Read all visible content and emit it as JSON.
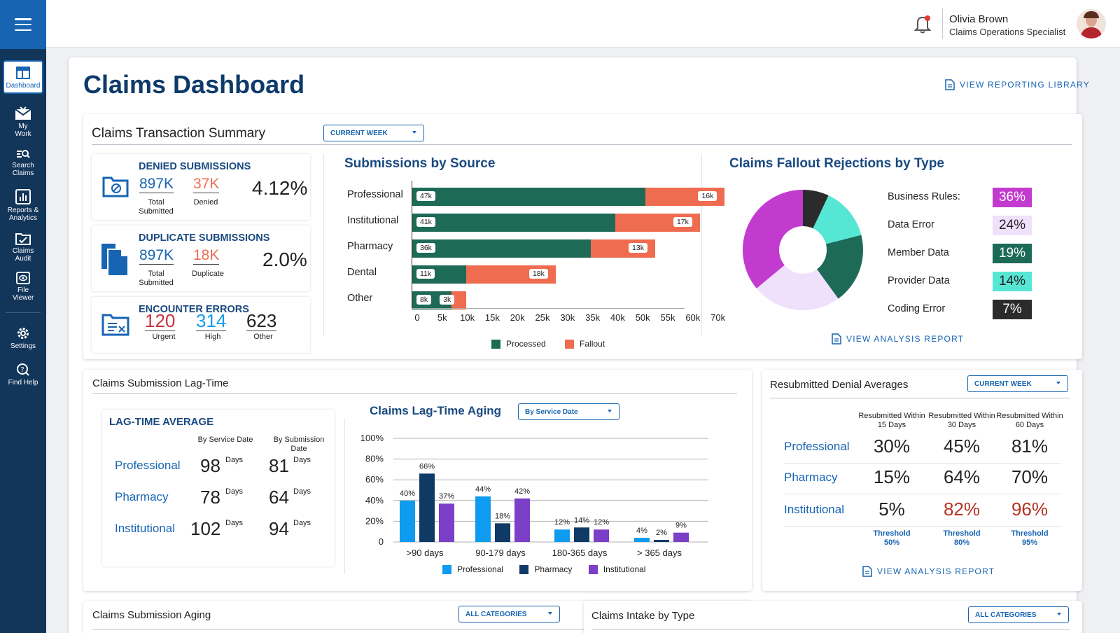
{
  "sidebar": {
    "items": [
      {
        "label": "Dashboard",
        "icon": "dashboard-icon"
      },
      {
        "label": "My Work",
        "icon": "envelope-icon"
      },
      {
        "label": "Search Claims",
        "icon": "search-list-icon"
      },
      {
        "label": "Reports & Analytics",
        "icon": "chart-icon"
      },
      {
        "label": "Claims Audit",
        "icon": "audit-icon"
      },
      {
        "label": "File Viewer",
        "icon": "file-viewer-icon"
      },
      {
        "label": "Settings",
        "icon": "gear-icon"
      },
      {
        "label": "Find Help",
        "icon": "help-icon"
      }
    ]
  },
  "user": {
    "name": "Olivia Brown",
    "role": "Claims Operations Specialist"
  },
  "page": {
    "title": "Claims Dashboard",
    "library_link": "VIEW REPORTING LIBRARY"
  },
  "summary": {
    "title": "Claims Transaction Summary",
    "period": "CURRENT WEEK",
    "denied": {
      "title": "DENIED SUBMISSIONS",
      "total": "897K",
      "total_label": "Total Submitted",
      "denied": "37K",
      "denied_label": "Denied",
      "rate": "4.12%"
    },
    "duplicate": {
      "title": "DUPLICATE SUBMISSIONS",
      "total": "897K",
      "total_label": "Total Submitted",
      "dup": "18K",
      "dup_label": "Duplicate",
      "rate": "2.0%"
    },
    "errors": {
      "title": "ENCOUNTER ERRORS",
      "urgent": "120",
      "urgent_label": "Urgent",
      "high": "314",
      "high_label": "High",
      "other": "623",
      "other_label": "Other"
    }
  },
  "submissions_by_source": {
    "title": "Submissions by Source",
    "legend": [
      "Processed",
      "Fallout"
    ]
  },
  "fallout": {
    "title": "Claims Fallout Rejections by Type",
    "link": "VIEW ANALYSIS REPORT"
  },
  "lagtime": {
    "title": "Claims Submission Lag-Time",
    "avg_title": "LAG-TIME AVERAGE",
    "col1": "By Service Date",
    "col2": "By Submission Date",
    "days": "Days",
    "rows": [
      {
        "label": "Professional",
        "a": "98",
        "b": "81"
      },
      {
        "label": "Pharmacy",
        "a": "78",
        "b": "64"
      },
      {
        "label": "Institutional",
        "a": "102",
        "b": "94"
      }
    ],
    "aging_title": "Claims Lag-Time Aging",
    "aging_filter": "By Service Date"
  },
  "resub": {
    "title": "Resubmitted Denial Averages",
    "period": "CURRENT WEEK",
    "cols": [
      "Resubmitted Within 15 Days",
      "Resubmitted Within 30 Days",
      "Resubmitted Within 60 Days"
    ],
    "rows": [
      {
        "label": "Professional",
        "v": [
          "30%",
          "45%",
          "81%"
        ]
      },
      {
        "label": "Pharmacy",
        "v": [
          "15%",
          "64%",
          "70%"
        ]
      },
      {
        "label": "Institutional",
        "v": [
          "5%",
          "82%",
          "96%"
        ]
      }
    ],
    "thresholds": [
      "Threshold 50%",
      "Threshold 80%",
      "Threshold 95%"
    ],
    "link": "VIEW ANALYSIS REPORT"
  },
  "aging": {
    "title": "Claims Submission Aging",
    "filter": "ALL CATEGORIES"
  },
  "intake": {
    "title": "Claims Intake by Type",
    "filter": "ALL CATEGORIES"
  },
  "colors": {
    "primary": "#1764b3",
    "navy": "#12355a",
    "processed": "#1d6b57",
    "fallout": "#ef6c50",
    "prof": "#0f9bef",
    "pharm": "#0f3a66",
    "inst": "#7c3fc7",
    "alert": "#b73122"
  },
  "chart_data": [
    {
      "type": "bar",
      "title": "Submissions by Source",
      "orientation": "horizontal",
      "stacked": true,
      "categories": [
        "Professional",
        "Institutional",
        "Pharmacy",
        "Dental",
        "Other"
      ],
      "series": [
        {
          "name": "Processed",
          "values": [
            47,
            41,
            36,
            11,
            8
          ],
          "labels": [
            "47k",
            "41k",
            "36k",
            "11k",
            "8k"
          ],
          "color": "#1d6b57"
        },
        {
          "name": "Fallout",
          "values": [
            16,
            17,
            13,
            18,
            3
          ],
          "labels": [
            "16k",
            "17k",
            "13k",
            "18k",
            "3k"
          ],
          "color": "#ef6c50"
        }
      ],
      "xticks": [
        "0",
        "5k",
        "10k",
        "15k",
        "20k",
        "25k",
        "30k",
        "35k",
        "40k",
        "50k",
        "55k",
        "60k",
        "70k"
      ],
      "legend": "bottom"
    },
    {
      "type": "pie",
      "title": "Claims Fallout Rejections by Type",
      "donut": true,
      "slices": [
        {
          "label": "Business Rules:",
          "value": 36,
          "text": "36%",
          "color": "#c33acf",
          "text_color": "#fff"
        },
        {
          "label": "Data Error",
          "value": 24,
          "text": "24%",
          "color": "#efe0fb",
          "text_color": "#222"
        },
        {
          "label": "Member Data",
          "value": 19,
          "text": "19%",
          "color": "#1d6b57",
          "text_color": "#fff"
        },
        {
          "label": "Provider Data",
          "value": 14,
          "text": "14%",
          "color": "#56e6d4",
          "text_color": "#222"
        },
        {
          "label": "Coding Error",
          "value": 7,
          "text": "7%",
          "color": "#2b2b2b",
          "text_color": "#fff"
        }
      ],
      "legend": "right"
    },
    {
      "type": "bar",
      "title": "Claims Lag-Time Aging",
      "categories": [
        ">90 days",
        "90-179 days",
        "180-365 days",
        "> 365 days"
      ],
      "series": [
        {
          "name": "Professional",
          "values": [
            40,
            44,
            12,
            4
          ],
          "color": "#0f9bef"
        },
        {
          "name": "Pharmacy",
          "values": [
            66,
            18,
            14,
            2
          ],
          "color": "#0f3a66"
        },
        {
          "name": "Institutional",
          "values": [
            37,
            42,
            12,
            9
          ],
          "color": "#7c3fc7"
        }
      ],
      "yticks": [
        "0",
        "20%",
        "40%",
        "60%",
        "80%",
        "100%"
      ],
      "ylim": [
        0,
        100
      ],
      "grid": true,
      "legend": "bottom"
    }
  ]
}
